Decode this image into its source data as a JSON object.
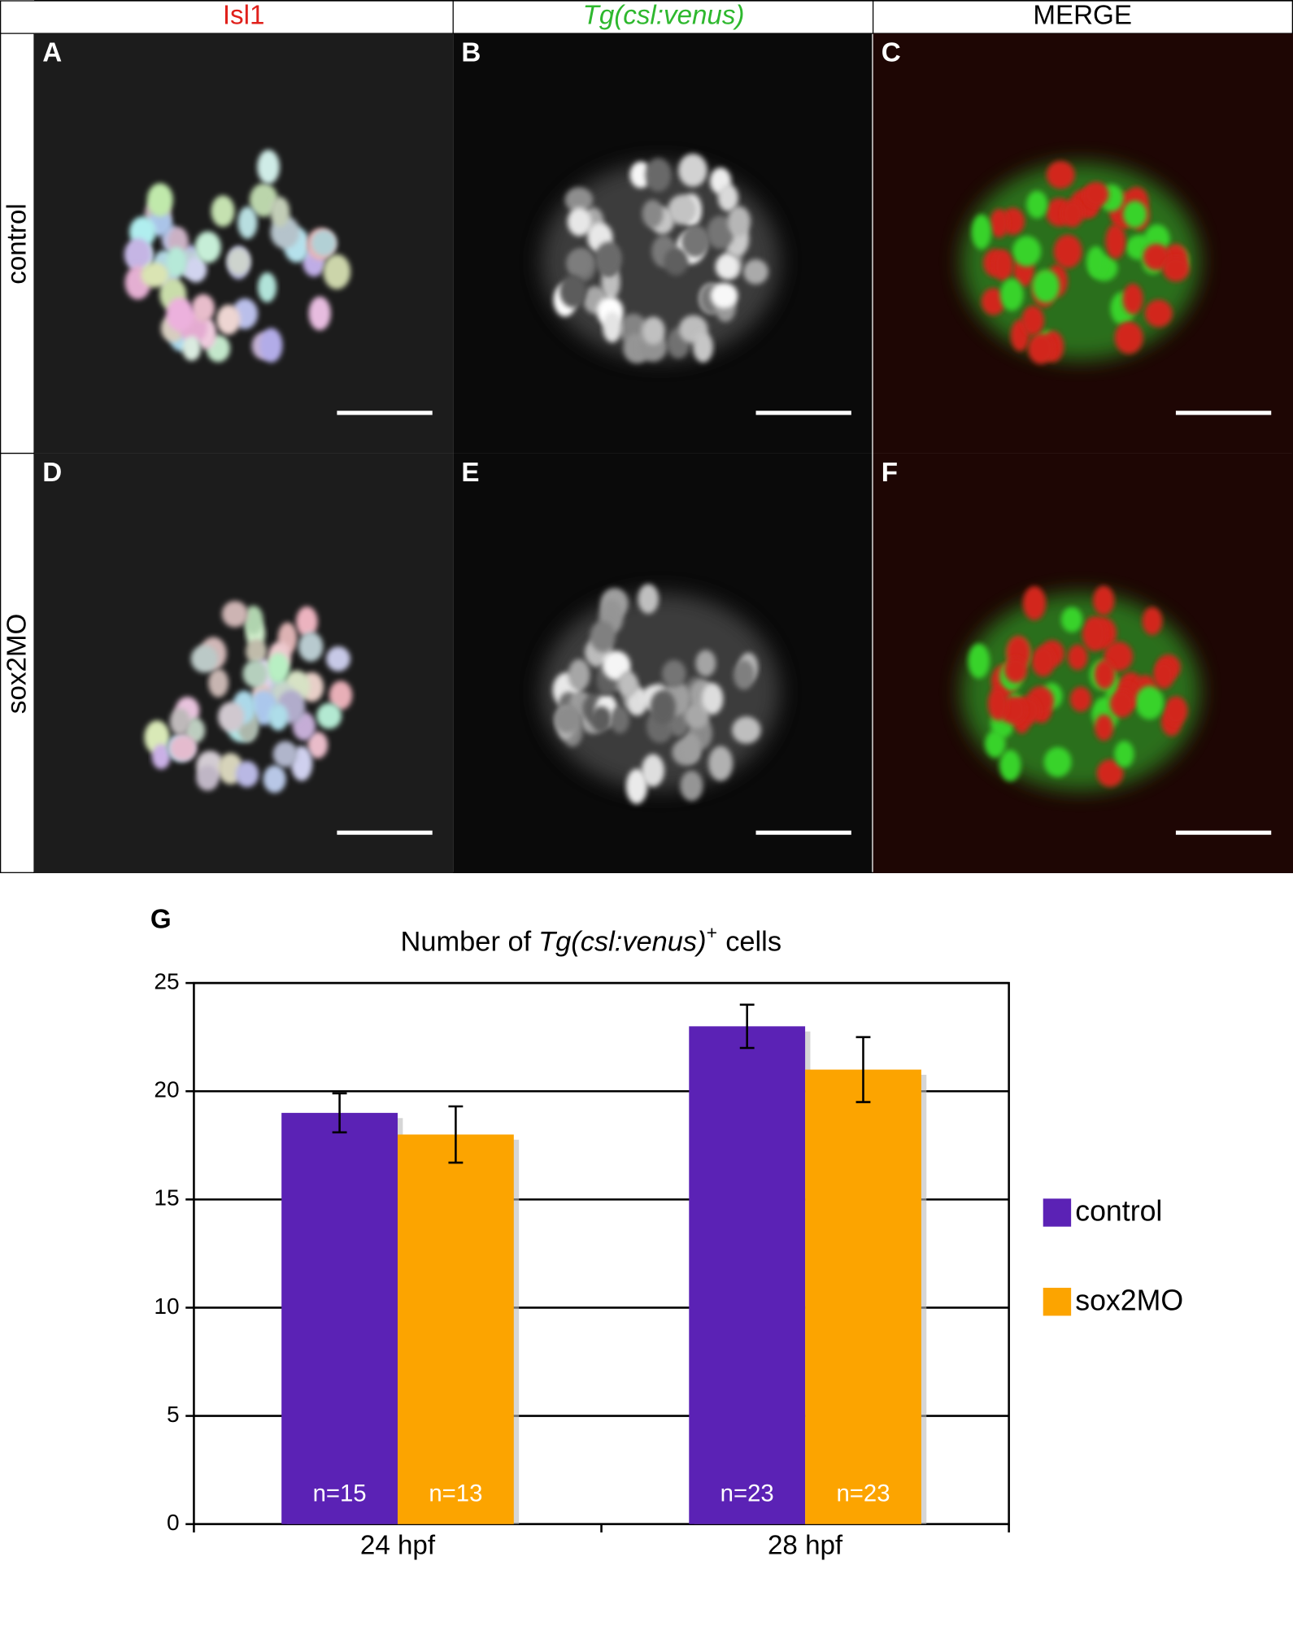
{
  "header": {
    "columns": [
      "Isl1",
      "Tg(csl:venus)",
      "MERGE"
    ],
    "rows": [
      "control",
      "sox2MO"
    ]
  },
  "panels": [
    "A",
    "B",
    "C",
    "D",
    "E",
    "F"
  ],
  "chart_label": "G",
  "chart_data": {
    "type": "bar",
    "title": {
      "prefix": "Number of",
      "italic": "Tg(csl:venus)",
      "superscript": "+",
      "suffix": "cells"
    },
    "categories": [
      "24 hpf",
      "28 hpf"
    ],
    "series": [
      {
        "name": "control",
        "color": "#5b22b5",
        "values": [
          19,
          23
        ],
        "errors": [
          0.9,
          1
        ],
        "annotations": [
          "n=15",
          "n=23"
        ]
      },
      {
        "name": "sox2MO",
        "color": "#fca400",
        "values": [
          18,
          21
        ],
        "errors": [
          1.3,
          1.5
        ],
        "annotations": [
          "n=13",
          "n=23"
        ]
      }
    ],
    "ylim": [
      0,
      25
    ],
    "yticks": [
      0,
      5,
      10,
      15,
      20,
      25
    ],
    "grid": true,
    "legend": "right"
  }
}
